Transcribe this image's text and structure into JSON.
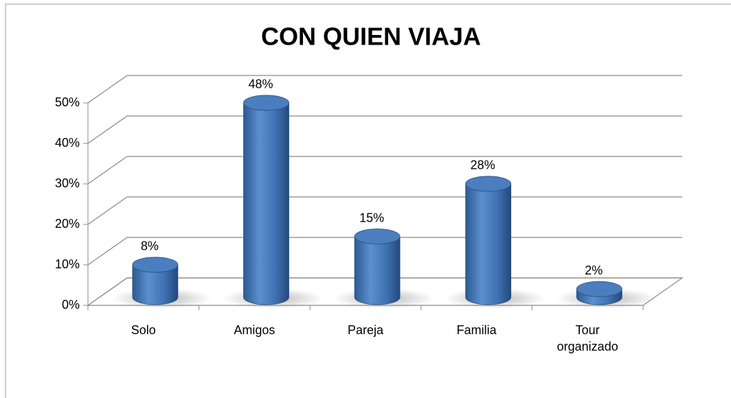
{
  "chart_data": {
    "type": "bar",
    "title": "CON QUIEN VIAJA",
    "categories": [
      "Solo",
      "Amigos",
      "Pareja",
      "Familia",
      "Tour organizado"
    ],
    "values": [
      8,
      48,
      15,
      28,
      2
    ],
    "value_labels": [
      "8%",
      "48%",
      "15%",
      "28%",
      "2%"
    ],
    "color": "#4a7ebf",
    "ylim": [
      0,
      50
    ],
    "yticks": [
      {
        "value": 0,
        "label": "0%"
      },
      {
        "value": 10,
        "label": "10%"
      },
      {
        "value": 20,
        "label": "20%"
      },
      {
        "value": 30,
        "label": "30%"
      },
      {
        "value": 40,
        "label": "40%"
      },
      {
        "value": 50,
        "label": "50%"
      }
    ],
    "grid": true
  }
}
